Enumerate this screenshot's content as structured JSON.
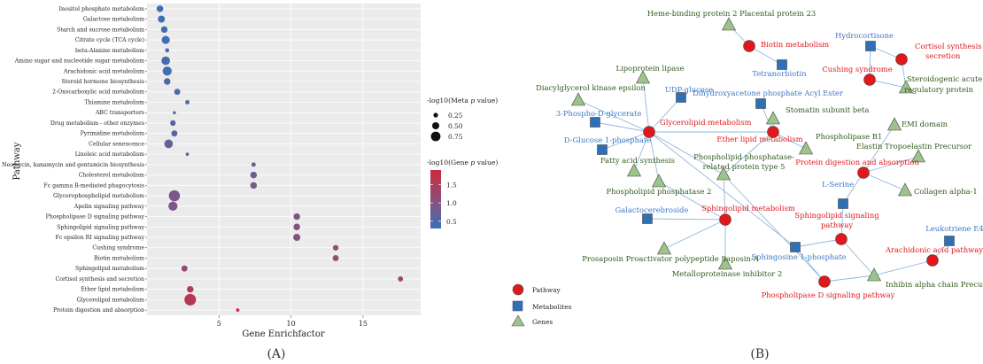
{
  "captions": {
    "a": "(A)",
    "b": "(B)"
  },
  "chart_data": [
    {
      "type": "scatter",
      "title": "",
      "xlabel": "Gene Enrichfactor",
      "ylabel": "Pathway",
      "xlim": [
        0,
        19
      ],
      "xticks": [
        5,
        10,
        15
      ],
      "grid": true,
      "legend_placement": "right",
      "size_legend": {
        "title_prefix": "-log10(Meta ",
        "title_italic": "p",
        "title_suffix": " value)",
        "entries": [
          {
            "label": "0.25",
            "value": 0.25
          },
          {
            "label": "0.50",
            "value": 0.5
          },
          {
            "label": "0.75",
            "value": 0.75
          }
        ]
      },
      "color_legend": {
        "title_prefix": "-log10(Gene ",
        "title_italic": "p",
        "title_suffix": " value)",
        "ticks": [
          {
            "label": "1.5",
            "value": 1.5
          },
          {
            "label": "1.0",
            "value": 1.0
          },
          {
            "label": "0.5",
            "value": 0.5
          }
        ],
        "range": [
          0.3,
          1.9
        ],
        "low_color": "#3a70b8",
        "high_color": "#cc2a3a"
      },
      "points": [
        {
          "pathway": "Inositol phosphate metabolism",
          "x": 0.9,
          "size": 0.45,
          "color": 0.3
        },
        {
          "pathway": "Galactose metabolism",
          "x": 1.0,
          "size": 0.5,
          "color": 0.35
        },
        {
          "pathway": "Starch and sucrose metabolism",
          "x": 1.2,
          "size": 0.45,
          "color": 0.35
        },
        {
          "pathway": "Citrate cycle (TCA cycle)",
          "x": 1.3,
          "size": 0.6,
          "color": 0.35
        },
        {
          "pathway": "beta-Alanine metabolism",
          "x": 1.4,
          "size": 0.2,
          "color": 0.4
        },
        {
          "pathway": "Amino sugar and nucleotide sugar metabolism",
          "x": 1.3,
          "size": 0.65,
          "color": 0.4
        },
        {
          "pathway": "Arachidonic acid metabolism",
          "x": 1.4,
          "size": 0.7,
          "color": 0.4
        },
        {
          "pathway": "Steroid hormone biosynthesis",
          "x": 1.4,
          "size": 0.45,
          "color": 0.45
        },
        {
          "pathway": "2-Oxocarboxylic acid metabolism",
          "x": 2.1,
          "size": 0.4,
          "color": 0.45
        },
        {
          "pathway": "Thiamine metabolism",
          "x": 2.8,
          "size": 0.22,
          "color": 0.5
        },
        {
          "pathway": "ABC transporters",
          "x": 1.9,
          "size": 0.1,
          "color": 0.55
        },
        {
          "pathway": "Drug metabolism - other enzymes",
          "x": 1.8,
          "size": 0.35,
          "color": 0.6
        },
        {
          "pathway": "Pyrimidine metabolism",
          "x": 1.9,
          "size": 0.4,
          "color": 0.6
        },
        {
          "pathway": "Cellular senescence",
          "x": 1.5,
          "size": 0.65,
          "color": 0.7
        },
        {
          "pathway": "Linoleic acid metabolism",
          "x": 2.8,
          "size": 0.12,
          "color": 0.7
        },
        {
          "pathway": "Neomycin, kanamycin and gentamicin biosynthesis",
          "x": 7.4,
          "size": 0.22,
          "color": 0.75
        },
        {
          "pathway": "Cholesterol metabolism",
          "x": 7.4,
          "size": 0.45,
          "color": 0.8
        },
        {
          "pathway": "Fc gamma R-mediated phagocytosis",
          "x": 7.4,
          "size": 0.45,
          "color": 0.85
        },
        {
          "pathway": "Glycerophospholipid metabolism",
          "x": 1.9,
          "size": 0.9,
          "color": 0.9
        },
        {
          "pathway": "Apelin signaling pathway",
          "x": 1.8,
          "size": 0.7,
          "color": 0.9
        },
        {
          "pathway": "Phospholipase D signaling pathway",
          "x": 10.4,
          "size": 0.45,
          "color": 0.95
        },
        {
          "pathway": "Sphingolipid signaling pathway",
          "x": 10.4,
          "size": 0.45,
          "color": 1.0
        },
        {
          "pathway": "Fc epsilon RI signaling pathway",
          "x": 10.4,
          "size": 0.5,
          "color": 1.0
        },
        {
          "pathway": "Cushing syndrome",
          "x": 13.1,
          "size": 0.35,
          "color": 1.05
        },
        {
          "pathway": "Biotin metabolism",
          "x": 13.1,
          "size": 0.4,
          "color": 1.1
        },
        {
          "pathway": "Sphingolipid metabolism",
          "x": 2.6,
          "size": 0.4,
          "color": 1.15
        },
        {
          "pathway": "Cortisol synthesis and secretion",
          "x": 17.6,
          "size": 0.3,
          "color": 1.3
        },
        {
          "pathway": "Ether lipid metabolism",
          "x": 3.0,
          "size": 0.45,
          "color": 1.45
        },
        {
          "pathway": "Glycerolipid metabolism",
          "x": 3.0,
          "size": 0.95,
          "color": 1.6
        },
        {
          "pathway": "Protein digestion and absorption",
          "x": 6.3,
          "size": 0.12,
          "color": 1.9
        }
      ]
    },
    {
      "type": "network",
      "legend": {
        "pathway": {
          "label": "Pathway",
          "color": "#e0181c"
        },
        "metabolite": {
          "label": "Metabolites",
          "color": "#2f6fb5"
        },
        "gene": {
          "label": "Genes",
          "color": "#9bc38a"
        }
      },
      "nodes": [
        {
          "id": "biotin",
          "kind": "pathway",
          "label": "Biotin metabolism"
        },
        {
          "id": "cortisol",
          "kind": "pathway",
          "label": "Cortisol synthesis and secretion"
        },
        {
          "id": "cushing",
          "kind": "pathway",
          "label": "Cushing syndrome"
        },
        {
          "id": "glycerolipid",
          "kind": "pathway",
          "label": "Glycerolipid metabolism"
        },
        {
          "id": "etherlipid",
          "kind": "pathway",
          "label": "Ether lipid metabolism"
        },
        {
          "id": "protdig",
          "kind": "pathway",
          "label": "Protein digestion and absorption"
        },
        {
          "id": "sphingolipid",
          "kind": "pathway",
          "label": "Sphingolipid metabolism"
        },
        {
          "id": "sphsignal",
          "kind": "pathway",
          "label": "Sphingolipid signaling pathway"
        },
        {
          "id": "arachidonic",
          "kind": "pathway",
          "label": "Arachidonic acid pathway"
        },
        {
          "id": "pld",
          "kind": "pathway",
          "label": "Phospholipase D signaling pathway"
        },
        {
          "id": "hydrocortisone",
          "kind": "metabolite",
          "label": "Hydrocortisone"
        },
        {
          "id": "tetranorbiotin",
          "kind": "metabolite",
          "label": "Tetranorbiotin"
        },
        {
          "id": "udpglucose",
          "kind": "metabolite",
          "label": "UDP-glucose"
        },
        {
          "id": "dhap",
          "kind": "metabolite",
          "label": "Dihydroxyacetone phosphate Acyl Ester"
        },
        {
          "id": "phosphoglycerate",
          "kind": "metabolite",
          "label": "3-Phospho-D-glycerate"
        },
        {
          "id": "glucose1p",
          "kind": "metabolite",
          "label": "D-Glucose 1-phosphate"
        },
        {
          "id": "lserine",
          "kind": "metabolite",
          "label": "L-Serine"
        },
        {
          "id": "galactocerebroside",
          "kind": "metabolite",
          "label": "Galactocerebroside"
        },
        {
          "id": "leukotriene",
          "kind": "metabolite",
          "label": "Leukotriene E4"
        },
        {
          "id": "sphingosine1p",
          "kind": "metabolite",
          "label": "Sphingosine 1-phosphate"
        },
        {
          "id": "heme",
          "kind": "gene",
          "label": "Heme-binding protein 2 Placental protein 23"
        },
        {
          "id": "lipoprotein",
          "kind": "gene",
          "label": "Lipoprotein lipase"
        },
        {
          "id": "dgke",
          "kind": "gene",
          "label": "Diacylglycerol kinase epsilon"
        },
        {
          "id": "stard",
          "kind": "gene",
          "label": "Steroidogenic acute regulatory protein"
        },
        {
          "id": "stomatin",
          "kind": "gene",
          "label": "Stomatin subunit beta"
        },
        {
          "id": "emi",
          "kind": "gene",
          "label": "EMI domain"
        },
        {
          "id": "plb1",
          "kind": "gene",
          "label": "Phospholipase B1"
        },
        {
          "id": "elastin",
          "kind": "gene",
          "label": "Elastin Tropoelastin Precursor"
        },
        {
          "id": "fas",
          "kind": "gene",
          "label": "Fatty acid synthesis"
        },
        {
          "id": "ppr5",
          "kind": "gene",
          "label": "Phospholipid phosphatase-related protein type 5"
        },
        {
          "id": "pp2",
          "kind": "gene",
          "label": "Phospholipid phosphatase 2"
        },
        {
          "id": "collagen",
          "kind": "gene",
          "label": "Collagen alpha-1"
        },
        {
          "id": "prosaposin",
          "kind": "gene",
          "label": "Prosaposin Proactivator polypeptide Saposin-A"
        },
        {
          "id": "mmpi2",
          "kind": "gene",
          "label": "Metalloproteinase inhibitor 2"
        },
        {
          "id": "inhibin",
          "kind": "gene",
          "label": "Inhibin alpha chain Precursor"
        }
      ],
      "edges": [
        [
          "heme",
          "biotin"
        ],
        [
          "biotin",
          "tetranorbiotin"
        ],
        [
          "hydrocortisone",
          "cortisol"
        ],
        [
          "hydrocortisone",
          "cushing"
        ],
        [
          "cortisol",
          "stard"
        ],
        [
          "cushing",
          "stard"
        ],
        [
          "lipoprotein",
          "glycerolipid"
        ],
        [
          "dgke",
          "glycerolipid"
        ],
        [
          "udpglucose",
          "glycerolipid"
        ],
        [
          "phosphoglycerate",
          "glycerolipid"
        ],
        [
          "glucose1p",
          "glycerolipid"
        ],
        [
          "fas",
          "glycerolipid"
        ],
        [
          "glycerolipid",
          "pp2"
        ],
        [
          "glycerolipid",
          "ppr5"
        ],
        [
          "glycerolipid",
          "etherlipid"
        ],
        [
          "glycerolipid",
          "sphingosine1p"
        ],
        [
          "dhap",
          "etherlipid"
        ],
        [
          "stomatin",
          "etherlipid"
        ],
        [
          "plb1",
          "etherlipid"
        ],
        [
          "etherlipid",
          "ppr5"
        ],
        [
          "pp2",
          "sphingolipid"
        ],
        [
          "ppr5",
          "sphingolipid"
        ],
        [
          "galactocerebroside",
          "sphingolipid"
        ],
        [
          "sphingolipid",
          "prosaposin"
        ],
        [
          "sphingolipid",
          "mmpi2"
        ],
        [
          "ppr5",
          "pld"
        ],
        [
          "emi",
          "protdig"
        ],
        [
          "elastin",
          "protdig"
        ],
        [
          "protdig",
          "collagen"
        ],
        [
          "protdig",
          "lserine"
        ],
        [
          "lserine",
          "sphsignal"
        ],
        [
          "sphsignal",
          "sphingosine1p"
        ],
        [
          "sphsignal",
          "inhibin"
        ],
        [
          "sphingosine1p",
          "pld"
        ],
        [
          "inhibin",
          "pld"
        ],
        [
          "inhibin",
          "arachidonic"
        ],
        [
          "arachidonic",
          "leukotriene"
        ]
      ]
    }
  ]
}
